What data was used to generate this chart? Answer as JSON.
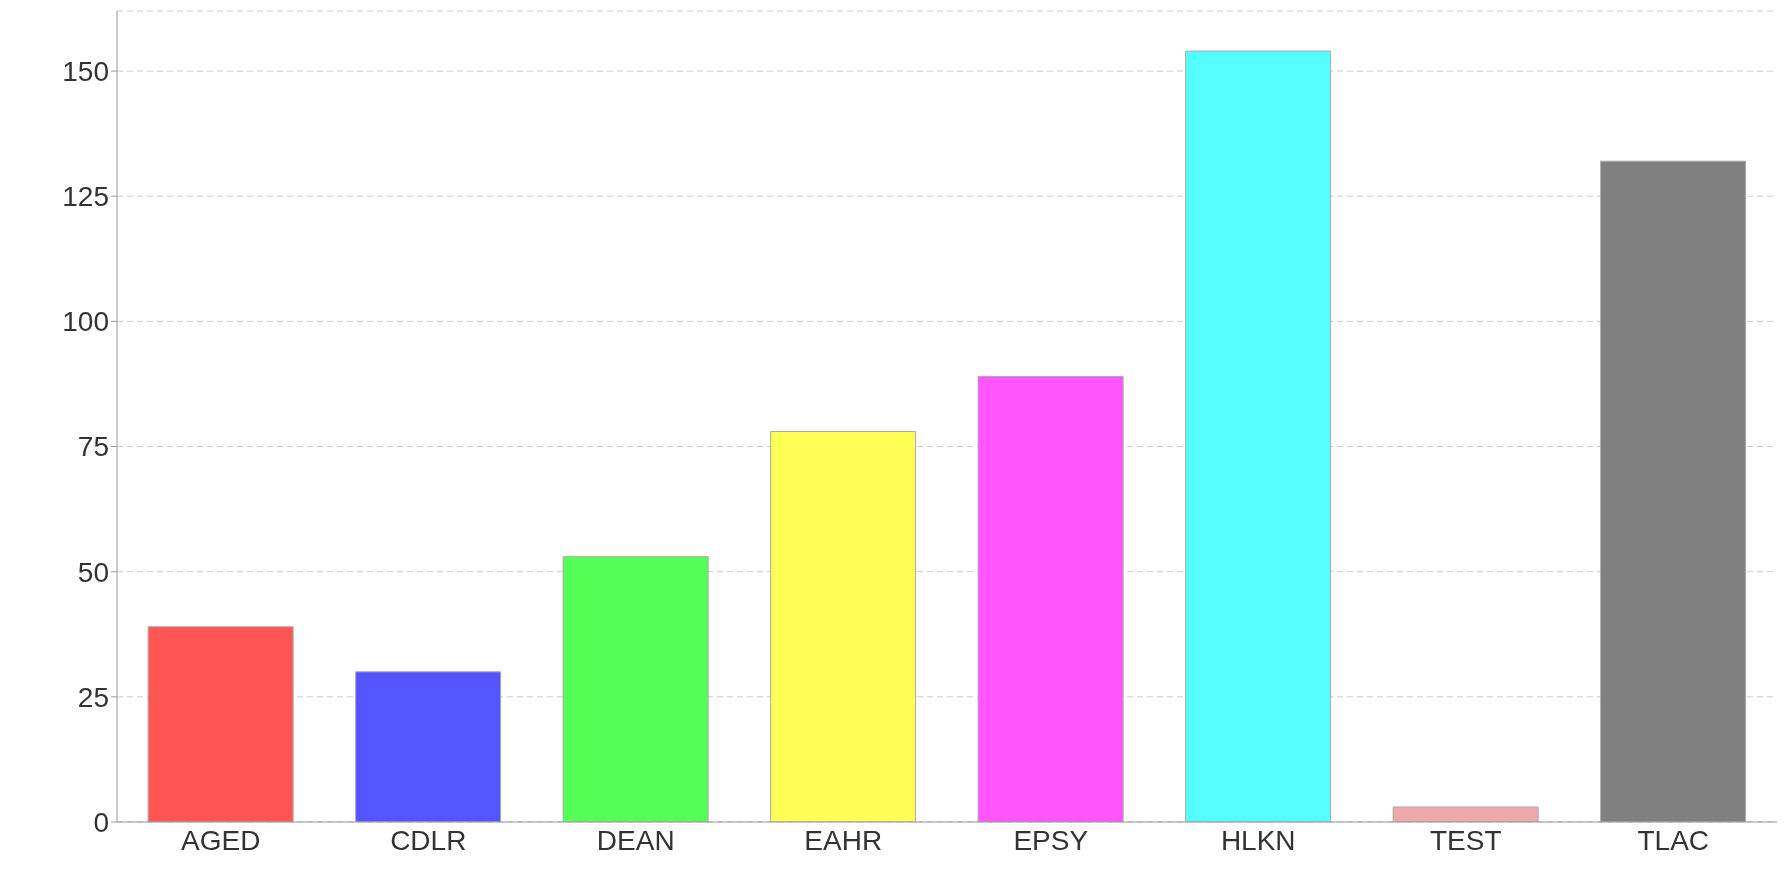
{
  "chart_data": {
    "type": "bar",
    "categories": [
      "AGED",
      "CDLR",
      "DEAN",
      "EAHR",
      "EPSY",
      "HLKN",
      "TEST",
      "TLAC"
    ],
    "values": [
      39,
      30,
      53,
      78,
      89,
      154,
      3,
      132
    ],
    "colors": [
      "#ff5555",
      "#5555ff",
      "#55ff55",
      "#ffff55",
      "#ff55ff",
      "#55ffff",
      "#eeaaaa",
      "#808080"
    ],
    "ylim": [
      0,
      162
    ],
    "yticks": [
      0,
      25,
      50,
      75,
      100,
      125,
      150
    ],
    "grid": "y"
  }
}
